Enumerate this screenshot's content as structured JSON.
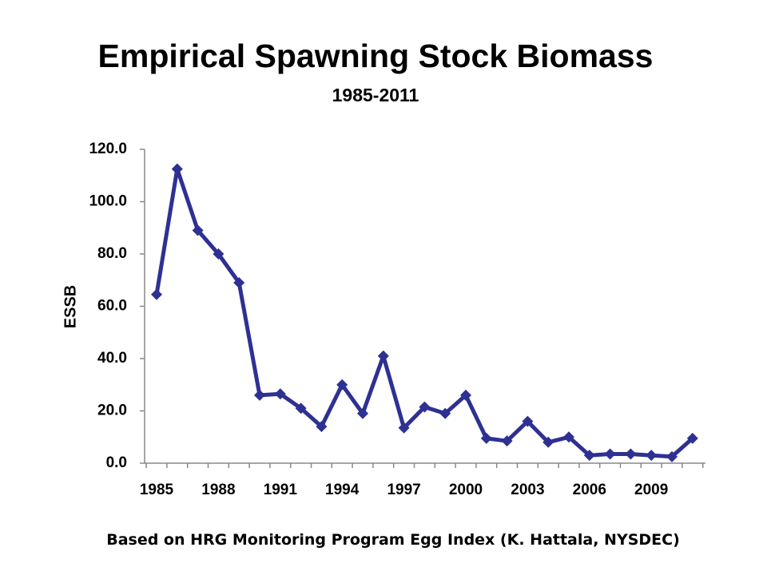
{
  "title": "Empirical Spawning Stock Biomass",
  "subtitle": "1985-2011",
  "footnote": "Based on HRG Monitoring Program Egg Index  (K. Hattala, NYSDEC)",
  "chart_data": {
    "type": "line",
    "title": "Empirical Spawning Stock Biomass",
    "subtitle": "1985-2011",
    "xlabel": "",
    "ylabel": "ESSB",
    "x": [
      1985,
      1986,
      1987,
      1988,
      1989,
      1990,
      1991,
      1992,
      1993,
      1994,
      1995,
      1996,
      1997,
      1998,
      1999,
      2000,
      2001,
      2002,
      2003,
      2004,
      2005,
      2006,
      2007,
      2008,
      2009,
      2010,
      2011
    ],
    "x_tick_labels": [
      "1985",
      "1988",
      "1991",
      "1994",
      "1997",
      "2000",
      "2003",
      "2006",
      "2009"
    ],
    "y_tick_labels": [
      "0.0",
      "20.0",
      "40.0",
      "60.0",
      "80.0",
      "100.0",
      "120.0"
    ],
    "ylim": [
      0,
      120
    ],
    "xlim": [
      1985,
      2011
    ],
    "grid": false,
    "legend": "none",
    "series": [
      {
        "color": "#2e3192",
        "marker": "diamond",
        "values": [
          64.5,
          112.5,
          89.0,
          80.0,
          69.0,
          26.0,
          26.5,
          21.0,
          14.0,
          30.0,
          19.0,
          41.0,
          13.5,
          21.5,
          19.0,
          26.0,
          9.5,
          8.5,
          16.0,
          8.0,
          10.0,
          3.0,
          3.5,
          3.5,
          3.0,
          2.5,
          9.5
        ]
      }
    ]
  }
}
